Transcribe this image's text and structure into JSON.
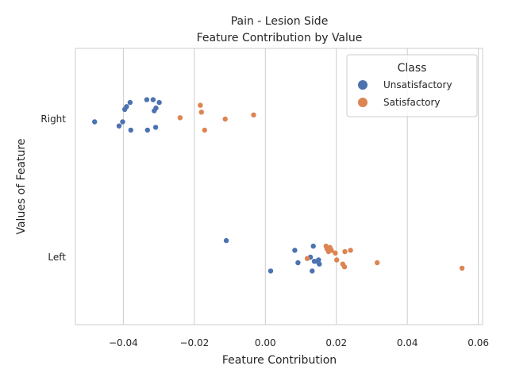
{
  "chart_data": {
    "type": "scatter",
    "title": "Pain - Lesion Side",
    "subtitle": "Feature Contribution by Value",
    "xlabel": "Feature Contribution",
    "ylabel": "Values of Feature",
    "xlim": [
      -0.0535,
      0.0612
    ],
    "x_ticks": [
      -0.04,
      -0.02,
      0.0,
      0.02,
      0.04,
      0.06
    ],
    "x_tick_labels": [
      "−0.04",
      "−0.02",
      "0.00",
      "0.02",
      "0.04",
      "0.06"
    ],
    "categories": [
      "Right",
      "Left"
    ],
    "grid": true,
    "legend": {
      "title": "Class",
      "placement": "top-right"
    },
    "series": [
      {
        "name": "Unsatisfactory",
        "color": "#4c72b0",
        "points": [
          {
            "x": -0.0481,
            "cat": "Right",
            "jitter": 0.02
          },
          {
            "x": -0.0412,
            "cat": "Right",
            "jitter": 0.05
          },
          {
            "x": -0.0402,
            "cat": "Right",
            "jitter": 0.02
          },
          {
            "x": -0.0396,
            "cat": "Right",
            "jitter": -0.07
          },
          {
            "x": -0.0391,
            "cat": "Right",
            "jitter": -0.09
          },
          {
            "x": -0.0381,
            "cat": "Right",
            "jitter": -0.12
          },
          {
            "x": -0.0379,
            "cat": "Right",
            "jitter": 0.08
          },
          {
            "x": -0.0334,
            "cat": "Right",
            "jitter": -0.14
          },
          {
            "x": -0.0332,
            "cat": "Right",
            "jitter": 0.08
          },
          {
            "x": -0.0316,
            "cat": "Right",
            "jitter": -0.14
          },
          {
            "x": -0.0313,
            "cat": "Right",
            "jitter": -0.06
          },
          {
            "x": -0.0309,
            "cat": "Right",
            "jitter": 0.06
          },
          {
            "x": -0.0308,
            "cat": "Right",
            "jitter": -0.08
          },
          {
            "x": -0.0299,
            "cat": "Right",
            "jitter": -0.12
          },
          {
            "x": -0.011,
            "cat": "Left",
            "jitter": -0.12
          },
          {
            "x": 0.0015,
            "cat": "Left",
            "jitter": 0.1
          },
          {
            "x": 0.0083,
            "cat": "Left",
            "jitter": -0.05
          },
          {
            "x": 0.0092,
            "cat": "Left",
            "jitter": 0.04
          },
          {
            "x": 0.0127,
            "cat": "Left",
            "jitter": 0.0
          },
          {
            "x": 0.0132,
            "cat": "Left",
            "jitter": 0.1
          },
          {
            "x": 0.0135,
            "cat": "Left",
            "jitter": -0.08
          },
          {
            "x": 0.0138,
            "cat": "Left",
            "jitter": 0.03
          },
          {
            "x": 0.0146,
            "cat": "Left",
            "jitter": 0.03
          },
          {
            "x": 0.015,
            "cat": "Left",
            "jitter": 0.02
          },
          {
            "x": 0.0152,
            "cat": "Left",
            "jitter": 0.05
          }
        ]
      },
      {
        "name": "Satisfactory",
        "color": "#dd8452",
        "points": [
          {
            "x": -0.024,
            "cat": "Right",
            "jitter": -0.01
          },
          {
            "x": -0.0183,
            "cat": "Right",
            "jitter": -0.1
          },
          {
            "x": -0.018,
            "cat": "Right",
            "jitter": -0.05
          },
          {
            "x": -0.0171,
            "cat": "Right",
            "jitter": 0.08
          },
          {
            "x": -0.0113,
            "cat": "Right",
            "jitter": 0.0
          },
          {
            "x": -0.0033,
            "cat": "Right",
            "jitter": -0.03
          },
          {
            "x": 0.0118,
            "cat": "Left",
            "jitter": 0.01
          },
          {
            "x": 0.0171,
            "cat": "Left",
            "jitter": -0.08
          },
          {
            "x": 0.0174,
            "cat": "Left",
            "jitter": -0.06
          },
          {
            "x": 0.0178,
            "cat": "Left",
            "jitter": -0.04
          },
          {
            "x": 0.0182,
            "cat": "Left",
            "jitter": -0.07
          },
          {
            "x": 0.0186,
            "cat": "Left",
            "jitter": -0.05
          },
          {
            "x": 0.0197,
            "cat": "Left",
            "jitter": -0.03
          },
          {
            "x": 0.0201,
            "cat": "Left",
            "jitter": 0.02
          },
          {
            "x": 0.0218,
            "cat": "Left",
            "jitter": 0.05
          },
          {
            "x": 0.0224,
            "cat": "Left",
            "jitter": -0.04
          },
          {
            "x": 0.0223,
            "cat": "Left",
            "jitter": 0.07
          },
          {
            "x": 0.024,
            "cat": "Left",
            "jitter": -0.05
          },
          {
            "x": 0.0315,
            "cat": "Left",
            "jitter": 0.04
          },
          {
            "x": 0.0554,
            "cat": "Left",
            "jitter": 0.08
          }
        ]
      }
    ]
  }
}
